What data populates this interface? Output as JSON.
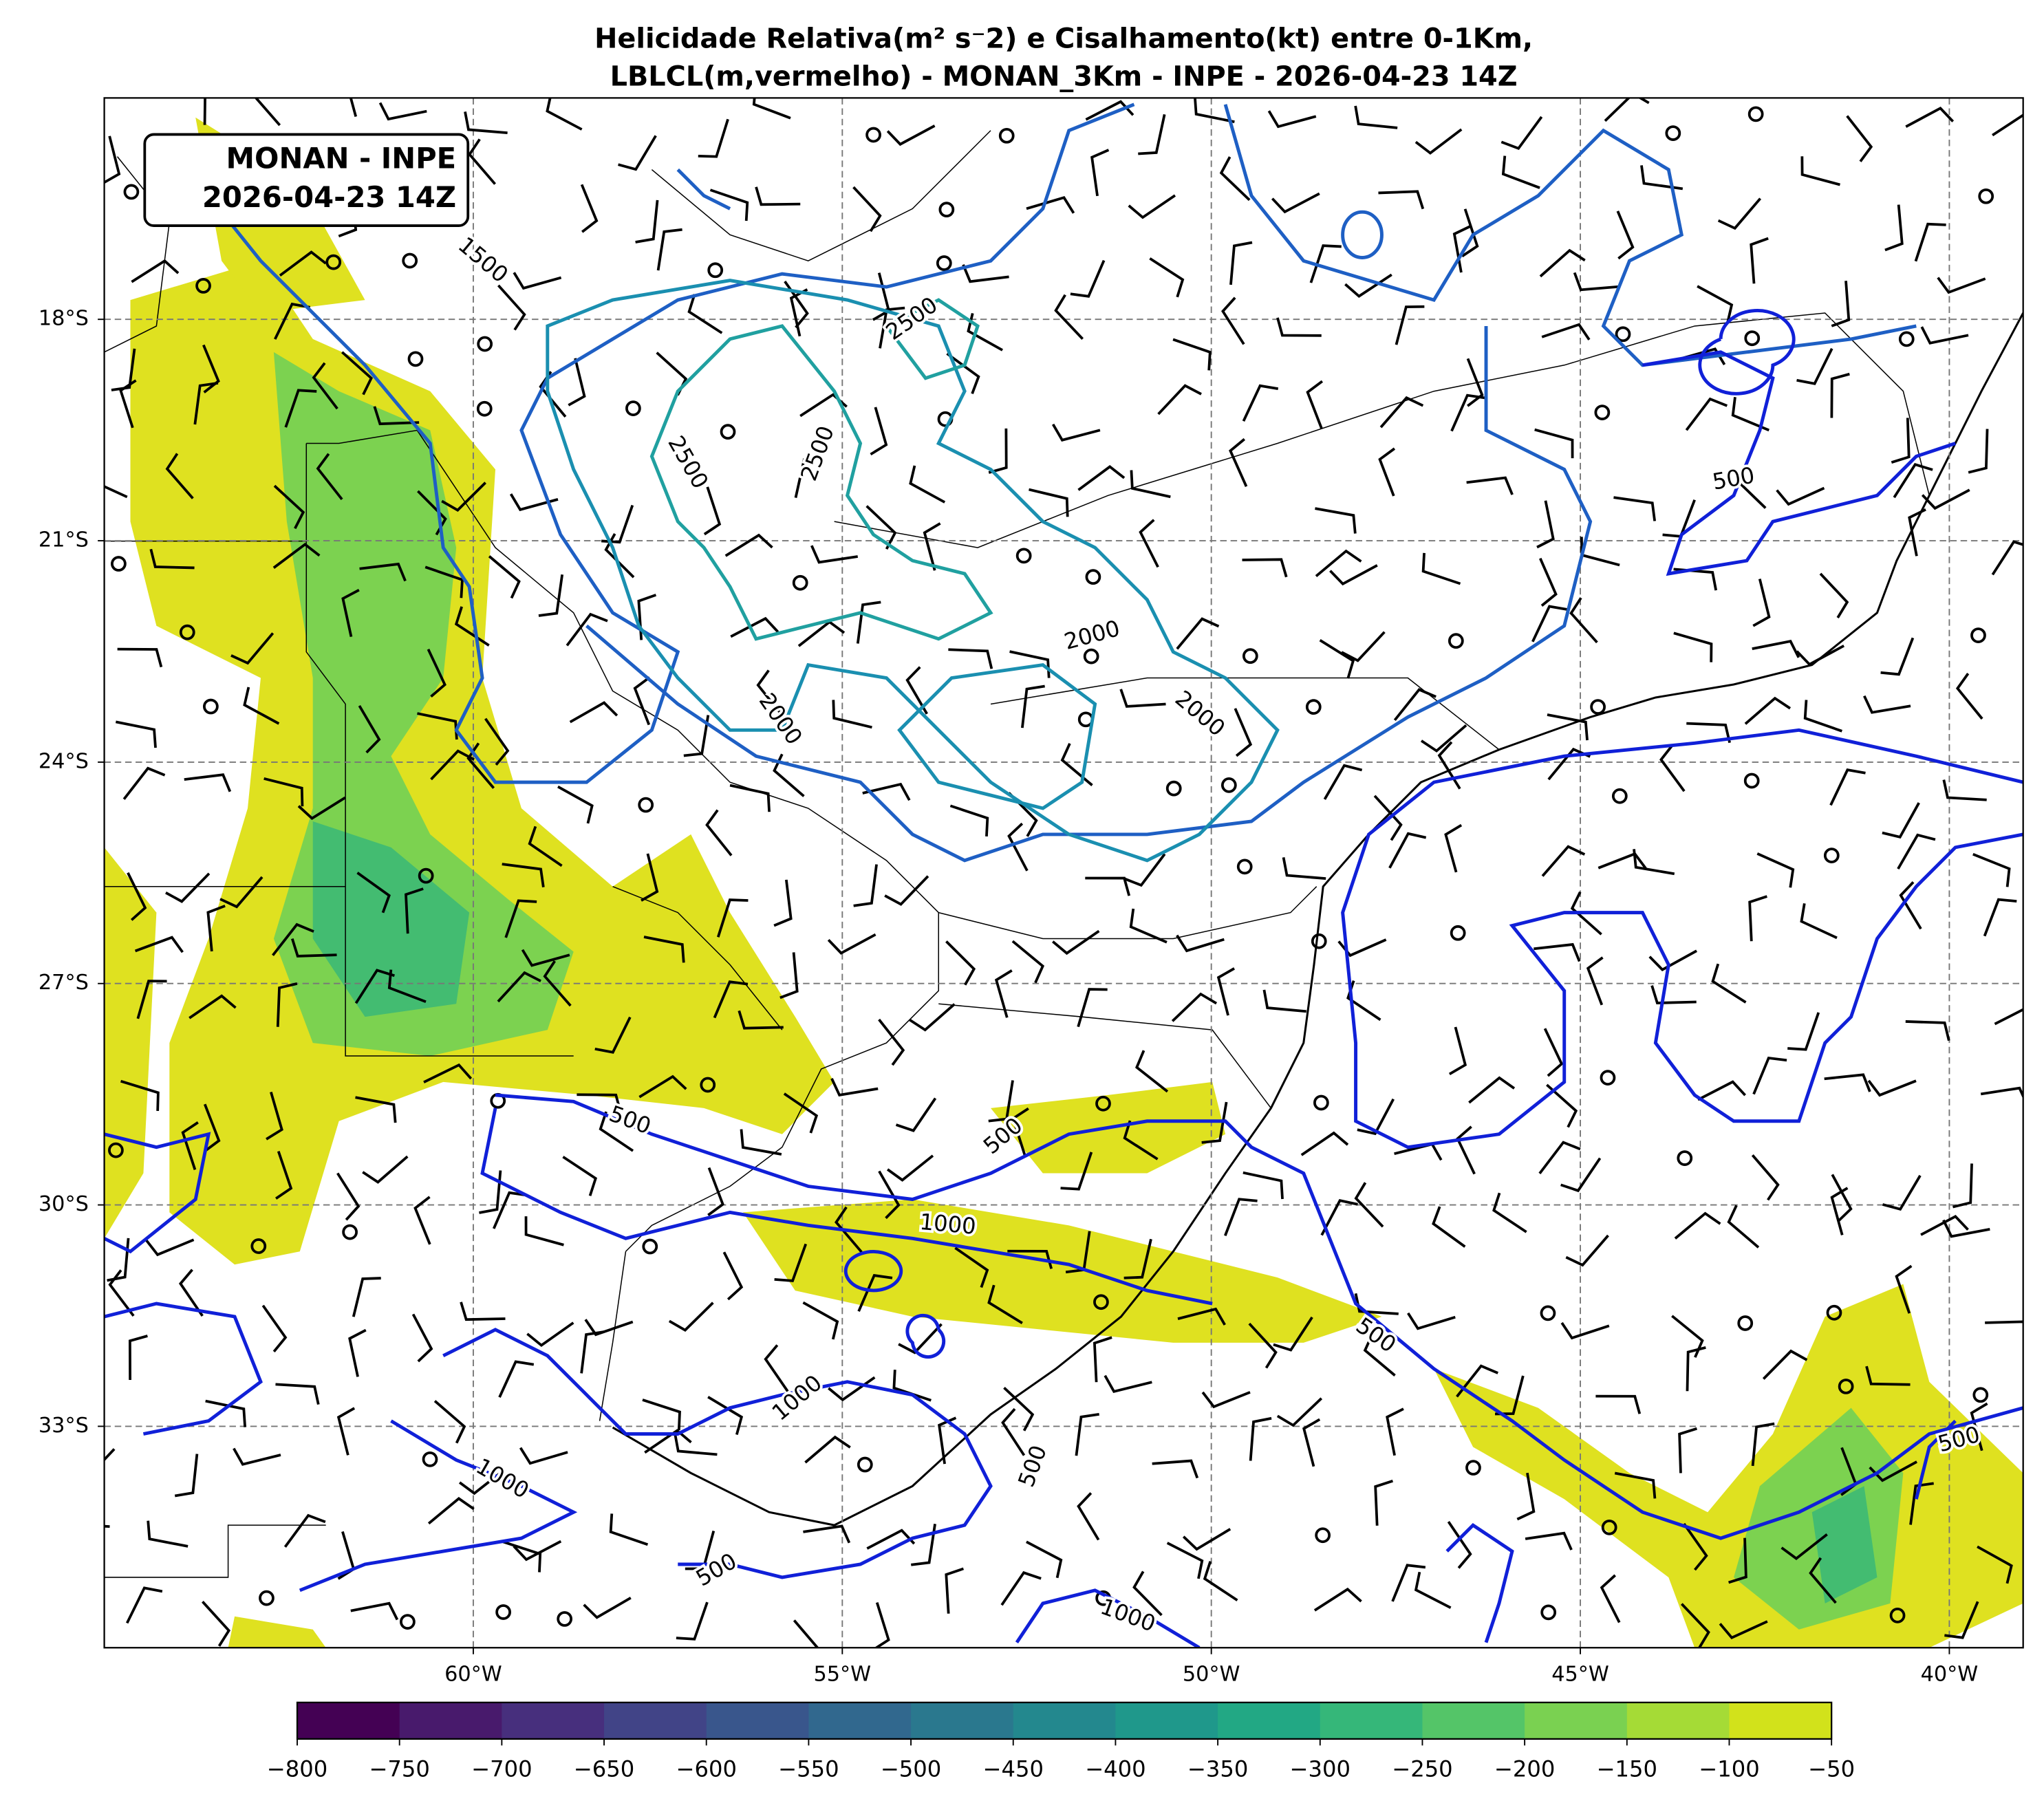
{
  "title": {
    "line1": "Helicidade Relativa(m² s⁻2) e Cisalhamento(kt) entre 0-1Km,",
    "line2": "LBLCL(m,vermelho) - MONAN_3Km - INPE - 2026-04-23 14Z"
  },
  "info_box": {
    "line1": "MONAN - INPE",
    "line2": "2026-04-23 14Z"
  },
  "map": {
    "lon_ticks": [
      {
        "value": -60,
        "label": "60°W"
      },
      {
        "value": -55,
        "label": "55°W"
      },
      {
        "value": -50,
        "label": "50°W"
      },
      {
        "value": -45,
        "label": "45°W"
      },
      {
        "value": -40,
        "label": "40°W"
      }
    ],
    "lat_ticks": [
      {
        "value": -18,
        "label": "18°S"
      },
      {
        "value": -21,
        "label": "21°S"
      },
      {
        "value": -24,
        "label": "24°S"
      },
      {
        "value": -27,
        "label": "27°S"
      },
      {
        "value": -30,
        "label": "30°S"
      },
      {
        "value": -33,
        "label": "33°S"
      }
    ],
    "lon_range": [
      -65,
      -39
    ],
    "lat_range": [
      -15,
      -36
    ],
    "grid": true,
    "contour_labels": [
      "1500",
      "2500",
      "2500",
      "2500",
      "2000",
      "2000",
      "2000",
      "500",
      "500",
      "500",
      "1000",
      "500",
      "1000",
      "1000",
      "500",
      "500",
      "1000",
      "500"
    ]
  },
  "colorbar": {
    "range": [
      -800,
      -50
    ],
    "ticks": [
      {
        "value": -800,
        "label": "−800"
      },
      {
        "value": -750,
        "label": "−750"
      },
      {
        "value": -700,
        "label": "−700"
      },
      {
        "value": -650,
        "label": "−650"
      },
      {
        "value": -600,
        "label": "−600"
      },
      {
        "value": -550,
        "label": "−550"
      },
      {
        "value": -500,
        "label": "−500"
      },
      {
        "value": -450,
        "label": "−450"
      },
      {
        "value": -400,
        "label": "−400"
      },
      {
        "value": -350,
        "label": "−350"
      },
      {
        "value": -300,
        "label": "−300"
      },
      {
        "value": -250,
        "label": "−250"
      },
      {
        "value": -200,
        "label": "−200"
      },
      {
        "value": -150,
        "label": "−150"
      },
      {
        "value": -100,
        "label": "−100"
      },
      {
        "value": -50,
        "label": "−50"
      }
    ],
    "colors": [
      "#440154",
      "#481a6c",
      "#472f7d",
      "#414487",
      "#39568c",
      "#31688e",
      "#2a788e",
      "#23888e",
      "#1f988b",
      "#22a884",
      "#35b779",
      "#54c568",
      "#7ad151",
      "#a5db36",
      "#d2e21b"
    ]
  }
}
